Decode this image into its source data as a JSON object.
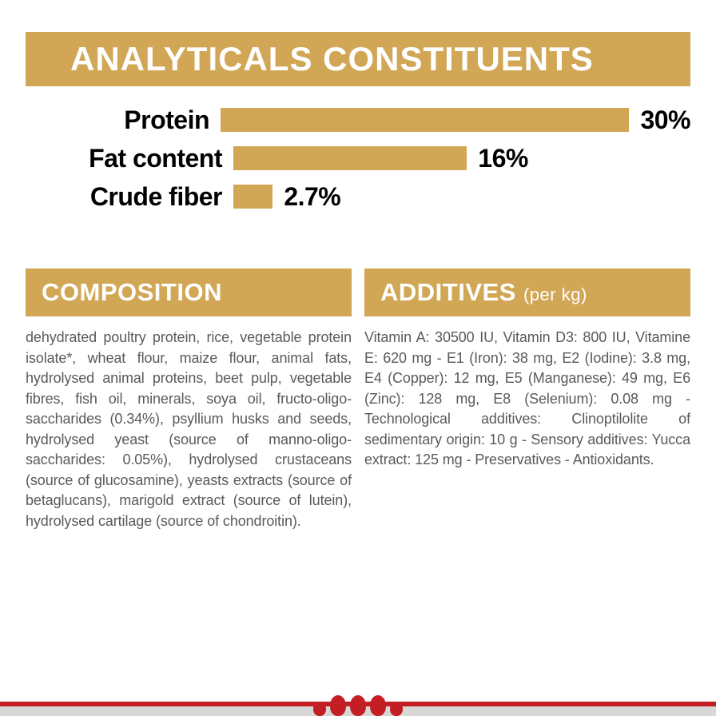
{
  "header": {
    "title": "ANALYTICALS CONSTITUENTS"
  },
  "bars": {
    "track_width": 548,
    "max_value": 30,
    "accent": "#d1a756",
    "items": [
      {
        "label": "Protein",
        "value": 30,
        "display": "30%"
      },
      {
        "label": "Fat content",
        "value": 16,
        "display": "16%"
      },
      {
        "label": "Crude fiber",
        "value": 2.7,
        "display": "2.7%"
      }
    ]
  },
  "columns": {
    "composition": {
      "title": "COMPOSITION",
      "body": "dehydrated poultry protein, rice, vegetable protein isolate*, wheat flour, maize flour, animal fats, hydrolysed animal proteins, beet pulp, vegetable fibres, fish oil, minerals, soya oil, fructo-oligo-saccharides (0.34%), psyllium husks and seeds, hydrolysed yeast (source of manno-oligo-saccharides: 0.05%), hydrolysed crustaceans (source of glucosamine), yeasts extracts (source of betaglucans), marigold extract (source of lutein), hydrolysed cartilage (source of chondroitin)."
    },
    "additives": {
      "title": "ADDITIVES",
      "suffix": "(per kg)",
      "body": "Vitamin A: 30500 IU, Vitamin D3: 800 IU, Vitamine E: 620 mg - E1 (Iron): 38 mg, E2 (Iodine): 3.8 mg, E4 (Copper): 12 mg, E5 (Manganese): 49 mg, E6 (Zinc): 128 mg, E8 (Selenium): 0.08 mg - Technological additives: Clinoptilolite of sedimentary origin: 10 g - Sensory additives: Yucca extract: 125 mg - Preservatives - Antioxidants."
    }
  },
  "footer": {
    "stripe_color": "#c41e25",
    "band_color": "#d8d8d8"
  }
}
